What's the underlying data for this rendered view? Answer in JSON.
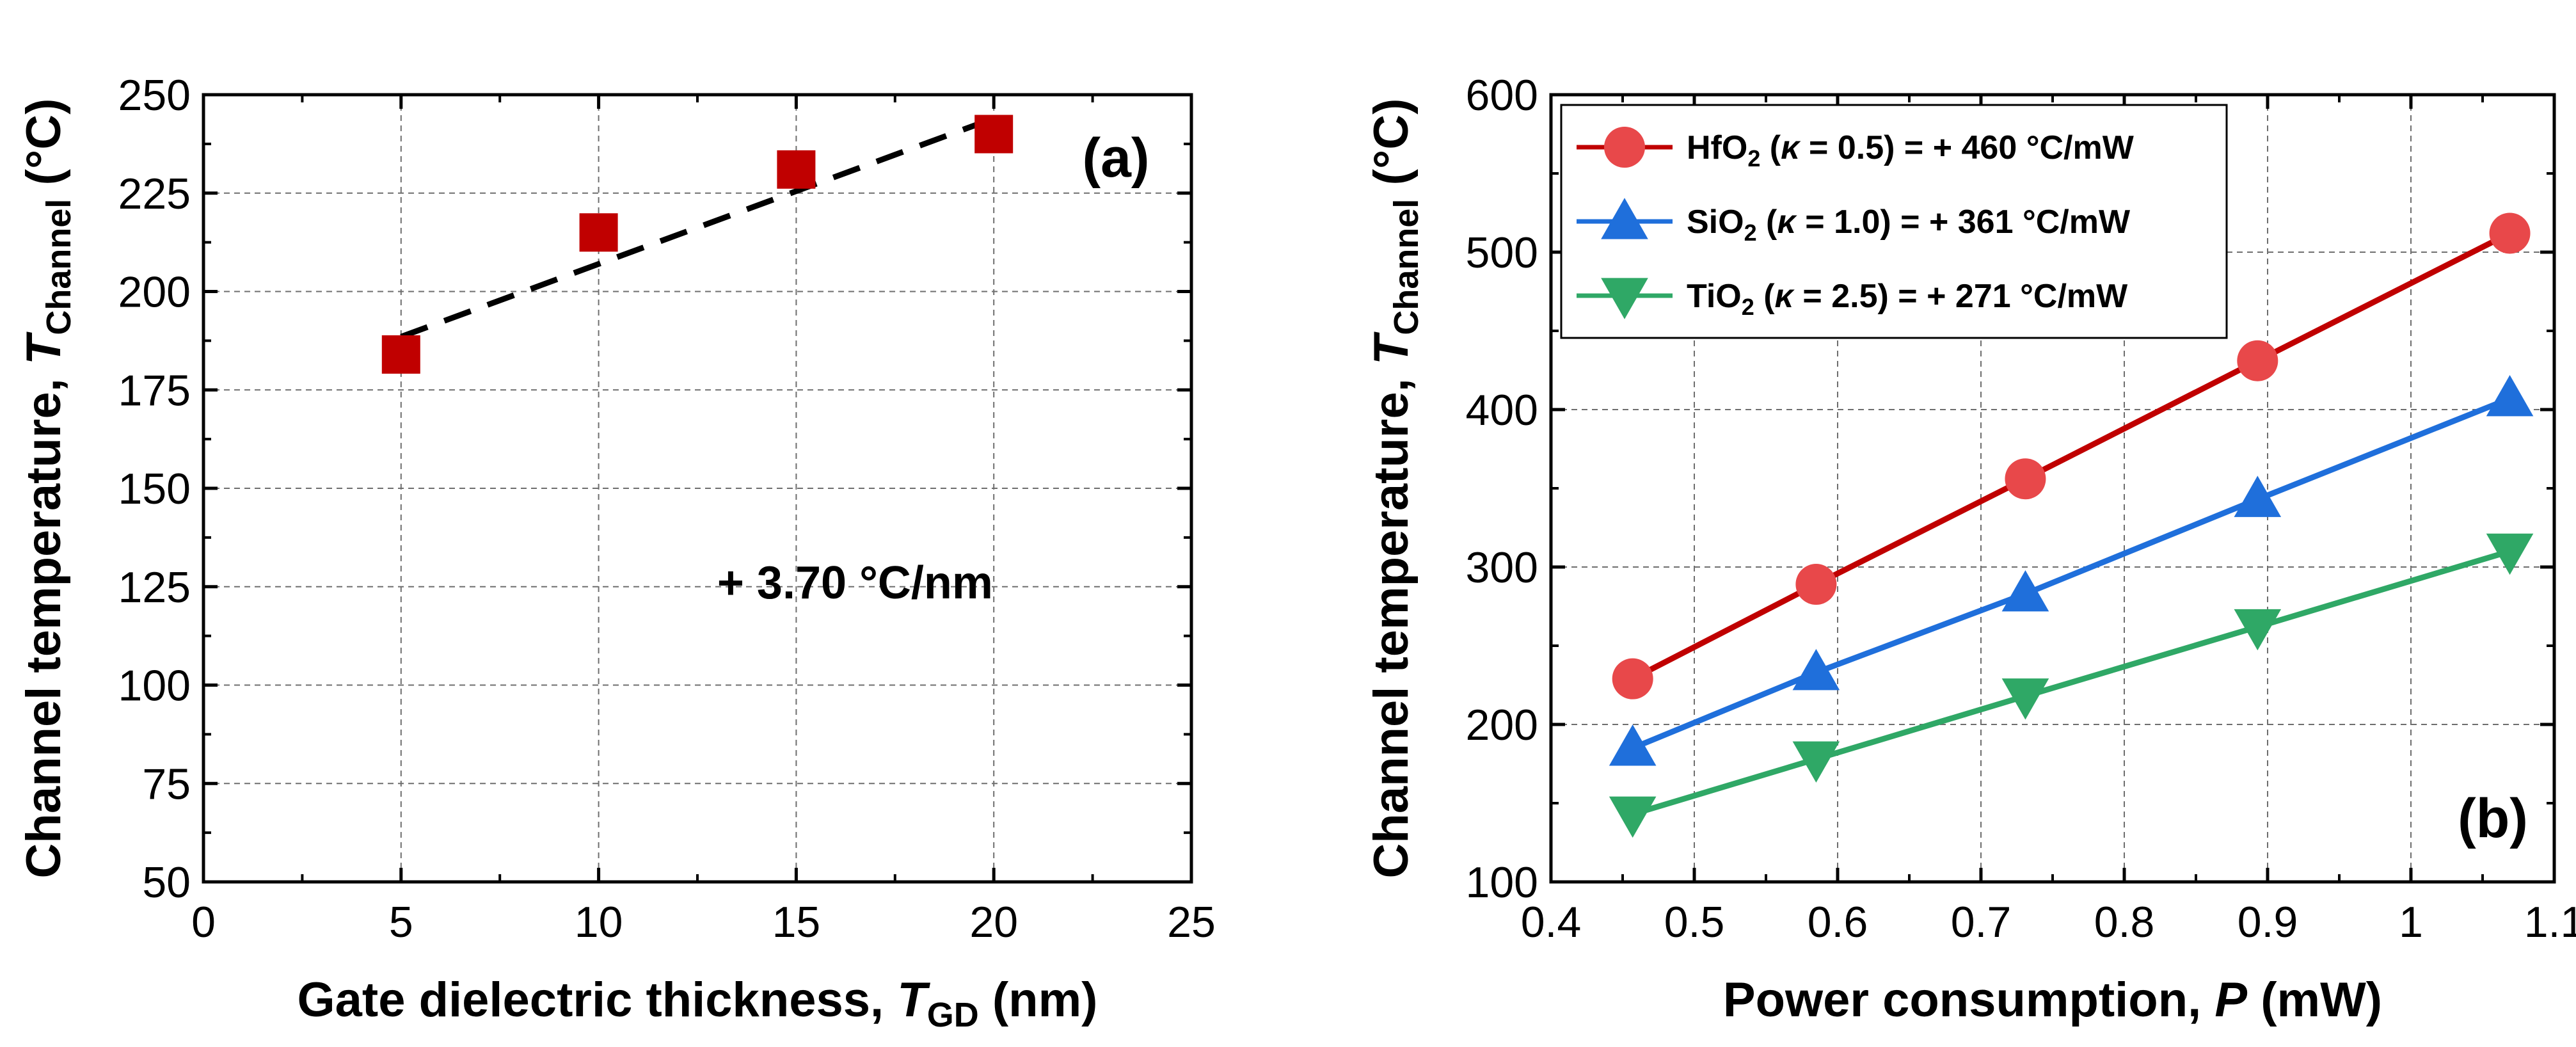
{
  "chart_data": [
    {
      "panel": "(a)",
      "type": "scatter",
      "xlabel": {
        "prefix": "Gate dielectric thickness, ",
        "symbol": "T",
        "subscript": "GD",
        "suffix": " (nm)"
      },
      "ylabel": {
        "prefix": "Channel temperature, ",
        "symbol": "T",
        "subscript": "Channel",
        "suffix": " (°C)"
      },
      "xlim": [
        0,
        25
      ],
      "ylim": [
        50,
        250
      ],
      "xticks": [
        0,
        5,
        10,
        15,
        20,
        25
      ],
      "yticks": [
        50,
        75,
        100,
        125,
        150,
        175,
        200,
        225,
        250
      ],
      "grid": true,
      "annotation": "+ 3.70 °C/nm",
      "series": [
        {
          "name": "data",
          "marker": "square",
          "color": "#c00000",
          "x": [
            5,
            10,
            15,
            20
          ],
          "y": [
            184,
            215,
            231,
            240
          ]
        }
      ],
      "fit": {
        "style": "dashed",
        "color": "#000000",
        "x": [
          5,
          20
        ],
        "y": [
          188.5,
          244
        ]
      }
    },
    {
      "panel": "(b)",
      "type": "line",
      "xlabel": {
        "prefix": "Power consumption, ",
        "symbol": "P",
        "suffix": " (mW)"
      },
      "ylabel": {
        "prefix": "Channel temperature, ",
        "symbol": "T",
        "subscript": "Channel",
        "suffix": " (°C)"
      },
      "xlim": [
        0.4,
        1.1
      ],
      "ylim": [
        100,
        600
      ],
      "xticks": [
        0.4,
        0.5,
        0.6,
        0.7,
        0.8,
        0.9,
        1,
        1.1
      ],
      "xtick_labels": [
        "0.4",
        "0.5",
        "0.6",
        "0.7",
        "0.8",
        "0.9",
        "1",
        "1.1"
      ],
      "yticks": [
        100,
        200,
        300,
        400,
        500,
        600
      ],
      "grid": true,
      "legend_position": "top-left",
      "series": [
        {
          "name": "HfO2 (κ = 0.5) = + 460 °C/mW",
          "legend": {
            "base": "HfO",
            "sub": "2",
            "pre": " (",
            "kappa": "κ",
            "post": " = 0.5) = + 460 °C/mW"
          },
          "marker": "circle",
          "color": "#e8484a",
          "line_color": "#c00000",
          "x": [
            0.457,
            0.585,
            0.731,
            0.893,
            1.069
          ],
          "y": [
            229,
            289,
            356,
            431,
            512
          ]
        },
        {
          "name": "SiO2 (κ = 1.0) = + 361 °C/mW",
          "legend": {
            "base": "SiO",
            "sub": "2",
            "pre": " (",
            "kappa": "κ",
            "post": " = 1.0) = + 361 °C/mW"
          },
          "marker": "triangle-up",
          "color": "#1f6fdb",
          "line_color": "#1f6fdb",
          "x": [
            0.457,
            0.585,
            0.731,
            0.893,
            1.069
          ],
          "y": [
            185,
            233,
            283,
            343,
            407
          ]
        },
        {
          "name": "TiO2 (κ = 2.5) = + 271 °C/mW",
          "legend": {
            "base": "TiO",
            "sub": "2",
            "pre": " (",
            "kappa": "κ",
            "post": " = 2.5) = + 271 °C/mW"
          },
          "marker": "triangle-down",
          "color": "#2fa866",
          "line_color": "#2fa866",
          "x": [
            0.457,
            0.585,
            0.731,
            0.893,
            1.069
          ],
          "y": [
            143,
            178,
            218,
            262,
            310
          ]
        }
      ]
    }
  ]
}
